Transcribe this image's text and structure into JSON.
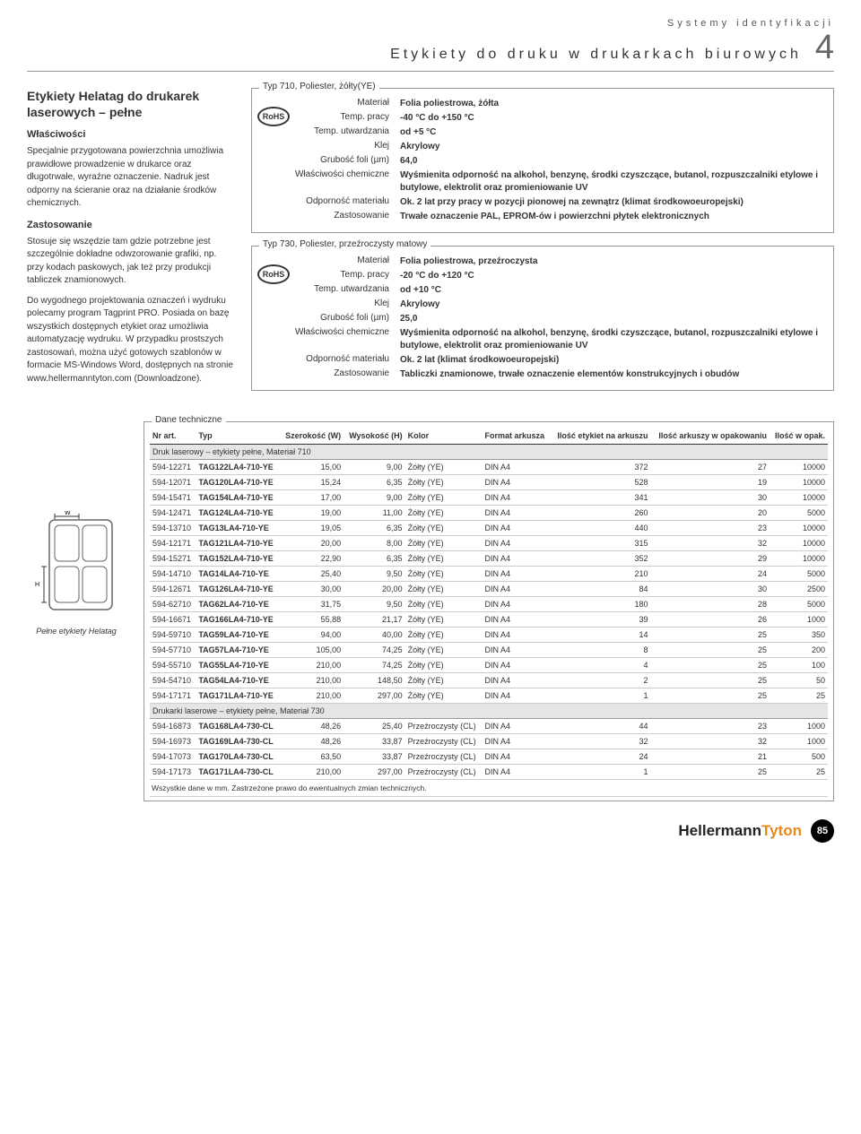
{
  "header": {
    "category": "Systemy identyfikacji",
    "title": "Etykiety do druku w drukarkach biurowych",
    "chapter": "4"
  },
  "left": {
    "heading": "Etykiety Helatag do drukarek laserowych – pełne",
    "sub1": "Właściwości",
    "p1": "Specjalnie przygotowana powierzchnia umożliwia prawidłowe prowadzenie w drukarce oraz długotrwałe, wyraźne oznaczenie. Nadruk jest odporny na ścieranie oraz na działanie środków chemicznych.",
    "sub2": "Zastosowanie",
    "p2": "Stosuje się wszędzie tam gdzie potrzebne jest szczególnie dokładne odwzorowanie grafiki, np. przy kodach paskowych, jak też przy produkcji tabliczek znamionowych.",
    "p3": "Do wygodnego projektowania oznaczeń i wydruku polecamy program Tagprint PRO. Posiada on bazę wszystkich dostępnych etykiet oraz umożliwia automatyzację wydruku. W przypadku prostszych zastosowań, można użyć gotowych szablonów w formacie MS-Windows Word, dostępnych na stronie www.hellermanntyton.com (Downloadzone).",
    "diagram_caption": "Pełne etykiety Helatag",
    "diagram_labels": {
      "w": "W",
      "h": "H"
    }
  },
  "spec710": {
    "title": "Typ 710, Poliester, żółty(YE)",
    "rohs": "RoHS",
    "rows": [
      {
        "label": "Materiał",
        "value": "Folia poliestrowa, żółta"
      },
      {
        "label": "Temp. pracy",
        "value": "-40 °C do +150 °C"
      },
      {
        "label": "Temp. utwardzania",
        "value": "od +5 °C"
      },
      {
        "label": "Klej",
        "value": "Akrylowy"
      },
      {
        "label": "Grubość foli (µm)",
        "value": "64,0"
      },
      {
        "label": "Właściwości chemiczne",
        "value": "Wyśmienita odporność na alkohol, benzynę, środki czyszczące, butanol, rozpuszczalniki etylowe i butylowe, elektrolit oraz promieniowanie UV"
      },
      {
        "label": "Odporność materiału",
        "value": "Ok. 2 lat przy pracy w pozycji pionowej na zewnątrz (klimat środkowoeuropejski)"
      },
      {
        "label": "Zastosowanie",
        "value": "Trwałe oznaczenie PAL, EPROM-ów i powierzchni płytek elektronicznych"
      }
    ]
  },
  "spec730": {
    "title": "Typ 730, Poliester, przeźroczysty matowy",
    "rohs": "RoHS",
    "rows": [
      {
        "label": "Materiał",
        "value": "Folia poliestrowa, przeźroczysta"
      },
      {
        "label": "Temp. pracy",
        "value": "-20 °C do +120 °C"
      },
      {
        "label": "Temp. utwardzania",
        "value": "od +10 °C"
      },
      {
        "label": "Klej",
        "value": "Akrylowy"
      },
      {
        "label": "Grubość foli (µm)",
        "value": "25,0"
      },
      {
        "label": "Właściwości chemiczne",
        "value": "Wyśmienita odporność na alkohol, benzynę, środki czyszczące, butanol, rozpuszczalniki etylowe i butylowe, elektrolit oraz promieniowanie UV"
      },
      {
        "label": "Odporność materiału",
        "value": "Ok. 2 lat (klimat środkowoeuropejski)"
      },
      {
        "label": "Zastosowanie",
        "value": "Tabliczki znamionowe, trwałe oznaczenie elementów konstrukcyjnych i obudów"
      }
    ]
  },
  "tech": {
    "title": "Dane techniczne",
    "columns": [
      "Nr art.",
      "Typ",
      "Szerokość (W)",
      "Wysokość (H)",
      "Kolor",
      "Format arkusza",
      "Ilość etykiet na arkuszu",
      "Ilość arkuszy w opakowaniu",
      "Ilość w opak."
    ],
    "section1": "Druk laserowy – etykiety pełne, Materiał 710",
    "rows1": [
      [
        "594-12271",
        "TAG122LA4-710-YE",
        "15,00",
        "9,00",
        "Żółty (YE)",
        "DIN A4",
        "372",
        "27",
        "10000"
      ],
      [
        "594-12071",
        "TAG120LA4-710-YE",
        "15,24",
        "6,35",
        "Żółty (YE)",
        "DIN A4",
        "528",
        "19",
        "10000"
      ],
      [
        "594-15471",
        "TAG154LA4-710-YE",
        "17,00",
        "9,00",
        "Żółty (YE)",
        "DIN A4",
        "341",
        "30",
        "10000"
      ],
      [
        "594-12471",
        "TAG124LA4-710-YE",
        "19,00",
        "11,00",
        "Żółty (YE)",
        "DIN A4",
        "260",
        "20",
        "5000"
      ],
      [
        "594-13710",
        "TAG13LA4-710-YE",
        "19,05",
        "6,35",
        "Żółty (YE)",
        "DIN A4",
        "440",
        "23",
        "10000"
      ],
      [
        "594-12171",
        "TAG121LA4-710-YE",
        "20,00",
        "8,00",
        "Żółty (YE)",
        "DIN A4",
        "315",
        "32",
        "10000"
      ],
      [
        "594-15271",
        "TAG152LA4-710-YE",
        "22,90",
        "6,35",
        "Żółty (YE)",
        "DIN A4",
        "352",
        "29",
        "10000"
      ],
      [
        "594-14710",
        "TAG14LA4-710-YE",
        "25,40",
        "9,50",
        "Żółty (YE)",
        "DIN A4",
        "210",
        "24",
        "5000"
      ],
      [
        "594-12671",
        "TAG126LA4-710-YE",
        "30,00",
        "20,00",
        "Żółty (YE)",
        "DIN A4",
        "84",
        "30",
        "2500"
      ],
      [
        "594-62710",
        "TAG62LA4-710-YE",
        "31,75",
        "9,50",
        "Żółty (YE)",
        "DIN A4",
        "180",
        "28",
        "5000"
      ],
      [
        "594-16671",
        "TAG166LA4-710-YE",
        "55,88",
        "21,17",
        "Żółty (YE)",
        "DIN A4",
        "39",
        "26",
        "1000"
      ],
      [
        "594-59710",
        "TAG59LA4-710-YE",
        "94,00",
        "40,00",
        "Żółty (YE)",
        "DIN A4",
        "14",
        "25",
        "350"
      ],
      [
        "594-57710",
        "TAG57LA4-710-YE",
        "105,00",
        "74,25",
        "Żółty (YE)",
        "DIN A4",
        "8",
        "25",
        "200"
      ],
      [
        "594-55710",
        "TAG55LA4-710-YE",
        "210,00",
        "74,25",
        "Żółty (YE)",
        "DIN A4",
        "4",
        "25",
        "100"
      ],
      [
        "594-54710",
        "TAG54LA4-710-YE",
        "210,00",
        "148,50",
        "Żółty (YE)",
        "DIN A4",
        "2",
        "25",
        "50"
      ],
      [
        "594-17171",
        "TAG171LA4-710-YE",
        "210,00",
        "297,00",
        "Żółty (YE)",
        "DIN A4",
        "1",
        "25",
        "25"
      ]
    ],
    "section2": "Drukarki laserowe – etykiety pełne, Materiał 730",
    "rows2": [
      [
        "594-16873",
        "TAG168LA4-730-CL",
        "48,26",
        "25,40",
        "Przeźroczysty (CL)",
        "DIN A4",
        "44",
        "23",
        "1000"
      ],
      [
        "594-16973",
        "TAG169LA4-730-CL",
        "48,26",
        "33,87",
        "Przeźroczysty (CL)",
        "DIN A4",
        "32",
        "32",
        "1000"
      ],
      [
        "594-17073",
        "TAG170LA4-730-CL",
        "63,50",
        "33,87",
        "Przeźroczysty (CL)",
        "DIN A4",
        "24",
        "21",
        "500"
      ],
      [
        "594-17173",
        "TAG171LA4-730-CL",
        "210,00",
        "297,00",
        "Przeźroczysty (CL)",
        "DIN A4",
        "1",
        "25",
        "25"
      ]
    ],
    "footnote": "Wszystkie dane w mm. Zastrzeżone prawo do ewentualnych zmian technicznych."
  },
  "footer": {
    "brand1": "Hellermann",
    "brand2": "Tyton",
    "page": "85"
  }
}
